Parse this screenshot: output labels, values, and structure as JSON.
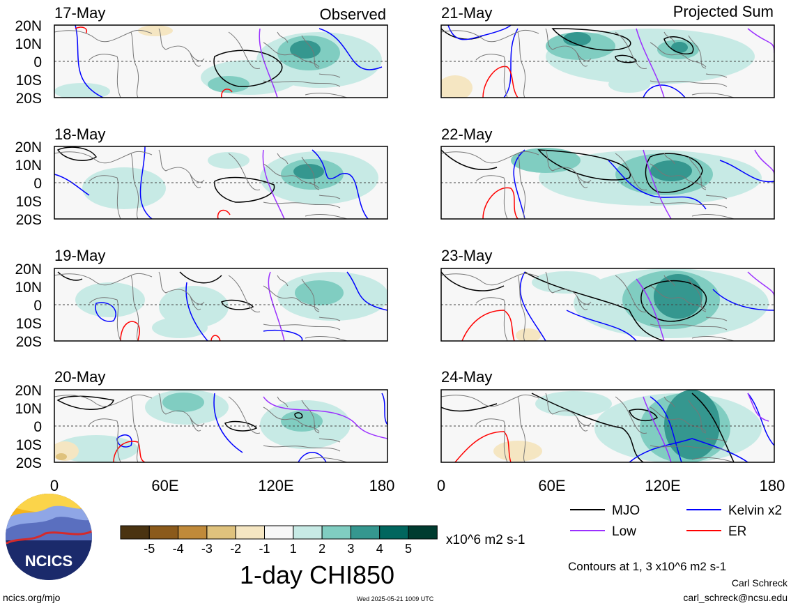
{
  "observed_label": "Observed",
  "projected_label": "Projected Sum",
  "lat_labels": [
    "20N",
    "10N",
    "0",
    "10S",
    "20S"
  ],
  "lon_labels": [
    "0",
    "60E",
    "120E",
    "180"
  ],
  "panels": [
    {
      "date": "17-May",
      "column": "observed"
    },
    {
      "date": "18-May",
      "column": "observed"
    },
    {
      "date": "19-May",
      "column": "observed"
    },
    {
      "date": "20-May",
      "column": "observed"
    },
    {
      "date": "21-May",
      "column": "projected"
    },
    {
      "date": "22-May",
      "column": "projected"
    },
    {
      "date": "23-May",
      "column": "projected"
    },
    {
      "date": "24-May",
      "column": "projected"
    }
  ],
  "colorbar": {
    "labels": [
      "-5",
      "-4",
      "-3",
      "-2",
      "-1",
      "1",
      "2",
      "3",
      "4",
      "5"
    ],
    "colors": [
      "#4a3311",
      "#8b5a1b",
      "#c08a3a",
      "#dfc27d",
      "#f5e6c2",
      "#f7f7f7",
      "#c7eae5",
      "#80cdc1",
      "#35978f",
      "#01665e",
      "#003c30"
    ],
    "units": "x10^6 m2 s-1",
    "title": "1-day CHI850"
  },
  "legend": [
    {
      "label": "MJO",
      "color": "#000000"
    },
    {
      "label": "Kelvin x2",
      "color": "#0000ff"
    },
    {
      "label": "Low",
      "color": "#9b30ff"
    },
    {
      "label": "ER",
      "color": "#ff0000"
    }
  ],
  "contours_note": "Contours at 1, 3 x10^6 m2 s-1",
  "author": "Carl Schreck",
  "email": "carl_schreck@ncsu.edu",
  "site": "ncics.org/mjo",
  "timestamp": "Wed 2025-05-21 1009 UTC",
  "logo_text": "NCICS",
  "colors": {
    "light_teal": "#c7eae5",
    "mid_teal": "#80cdc1",
    "dark_teal": "#35978f",
    "tan": "#f5e6c2",
    "coast": "#777777"
  },
  "icons": [
    "ncics-logo-icon"
  ]
}
